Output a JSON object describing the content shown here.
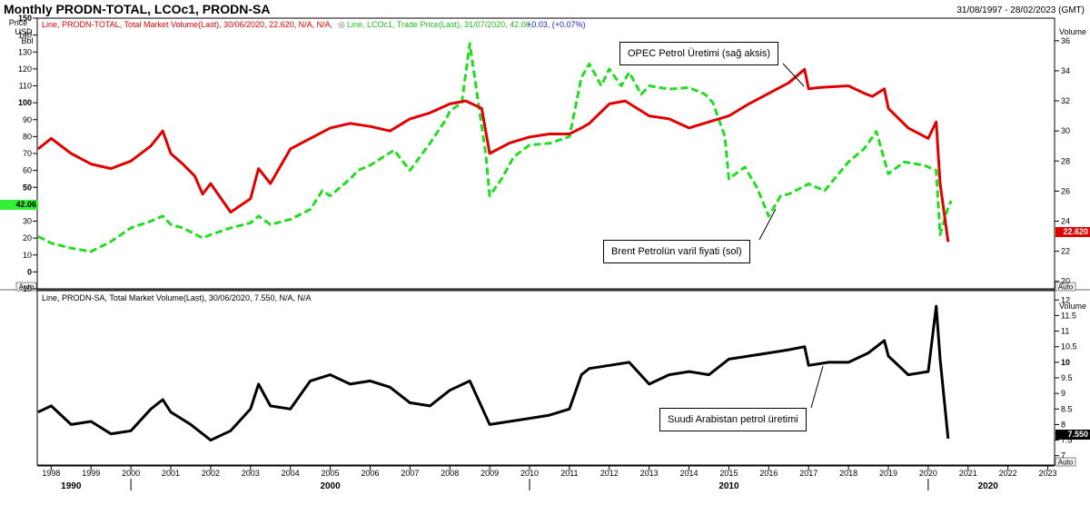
{
  "header": {
    "title": "Monthly PRODN-TOTAL, LCOc1, PRODN-SA",
    "date_range": "31/08/1997 - 28/02/2023 (GMT)"
  },
  "top_panel": {
    "legend_red": "Line, PRODN-TOTAL, Total Market Volume(Last), 30/06/2020, 22.620, N/A, N/A,",
    "legend_green": "Line, LCOc1, Trade Price(Last), 31/07/2020, 42.06,",
    "legend_change": "+0.03, (+0.07%)",
    "left_axis_title": [
      "Price",
      "USD",
      "Bbl"
    ],
    "right_axis_title": "Volume",
    "left_tag": "42.06",
    "right_tag": "22.620",
    "auto_left": "Auto",
    "auto_right": "Auto",
    "callout_opec": "OPEC Petrol Üretimi (sağ aksis)",
    "callout_brent": "Brent Petrolün varil fiyati (sol)"
  },
  "bottom_panel": {
    "legend": "Line, PRODN-SA, Total Market Volume(Last), 30/06/2020, 7.550, N/A, N/A",
    "right_axis_title": "Volume",
    "right_tag": "7.550",
    "auto_right": "Auto",
    "callout_saudi": "Suudi Arabistan petrol üretimi"
  },
  "x_axis": {
    "years": [
      "1998",
      "1999",
      "2000",
      "2001",
      "2002",
      "2003",
      "2004",
      "2005",
      "2006",
      "2007",
      "2008",
      "2009",
      "2010",
      "2011",
      "2012",
      "2013",
      "2014",
      "2015",
      "2016",
      "2017",
      "2018",
      "2019",
      "2020",
      "2021",
      "2022",
      "2023"
    ],
    "decades": [
      "1990",
      "2000",
      "2010",
      "2020"
    ]
  },
  "colors": {
    "opec": "#e00000",
    "brent": "#22dd22",
    "saudi": "#000000",
    "brent_tag": "#33ee33",
    "opec_tag": "#e00000"
  },
  "chart_data": [
    {
      "type": "line",
      "panel": "top",
      "y_left_ticks": [
        -10,
        0,
        10,
        20,
        30,
        40,
        50,
        60,
        70,
        80,
        90,
        100,
        110,
        120,
        130,
        140,
        150
      ],
      "y_left_range": [
        -10,
        150
      ],
      "y_right_ticks": [
        20,
        22,
        24,
        26,
        28,
        30,
        32,
        34,
        36
      ],
      "y_right_range": [
        19.5,
        37.5
      ],
      "x_range": [
        1997.65,
        2023.17
      ],
      "series": [
        {
          "name": "LCOc1",
          "axis": "left",
          "style": "dashed",
          "x": [
            1997.67,
            1998.0,
            1998.5,
            1999.0,
            1999.5,
            2000.0,
            2000.5,
            2000.8,
            2001.0,
            2001.3,
            2001.8,
            2002.0,
            2002.5,
            2003.0,
            2003.2,
            2003.5,
            2004.0,
            2004.5,
            2004.8,
            2005.0,
            2005.5,
            2005.7,
            2006.0,
            2006.6,
            2007.0,
            2007.5,
            2007.9,
            2008.0,
            2008.3,
            2008.5,
            2008.9,
            2009.0,
            2009.3,
            2009.6,
            2010.0,
            2010.5,
            2011.0,
            2011.3,
            2011.5,
            2011.8,
            2012.0,
            2012.3,
            2012.5,
            2012.8,
            2013.0,
            2013.5,
            2014.0,
            2014.4,
            2014.6,
            2014.9,
            2015.0,
            2015.4,
            2015.7,
            2016.0,
            2016.3,
            2016.5,
            2017.0,
            2017.4,
            2018.0,
            2018.4,
            2018.7,
            2019.0,
            2019.4,
            2019.9,
            2020.2,
            2020.3,
            2020.5,
            2020.58
          ],
          "y": [
            21,
            17,
            14,
            12,
            18,
            26,
            30,
            33,
            28,
            26,
            20,
            22,
            26,
            29,
            33,
            28,
            31,
            37,
            48,
            45,
            55,
            60,
            63,
            72,
            60,
            76,
            90,
            95,
            100,
            135,
            70,
            45,
            55,
            68,
            75,
            76,
            80,
            115,
            123,
            110,
            120,
            110,
            118,
            105,
            110,
            108,
            109,
            105,
            100,
            80,
            55,
            62,
            50,
            33,
            45,
            46,
            52,
            48,
            65,
            73,
            83,
            58,
            65,
            63,
            60,
            22,
            38,
            42.06
          ]
        },
        {
          "name": "PRODN-TOTAL",
          "axis": "right",
          "style": "solid",
          "x": [
            1997.67,
            1998.0,
            1998.5,
            1999.0,
            1999.5,
            2000.0,
            2000.5,
            2000.8,
            2001.0,
            2001.3,
            2001.6,
            2001.8,
            2002.0,
            2002.5,
            2003.0,
            2003.2,
            2003.5,
            2004.0,
            2004.5,
            2005.0,
            2005.5,
            2006.0,
            2006.5,
            2007.0,
            2007.5,
            2008.0,
            2008.4,
            2008.8,
            2009.0,
            2009.5,
            2010.0,
            2010.5,
            2011.0,
            2011.3,
            2011.5,
            2012.0,
            2012.4,
            2013.0,
            2013.5,
            2014.0,
            2014.5,
            2015.0,
            2015.5,
            2016.0,
            2016.5,
            2016.9,
            2017.0,
            2017.3,
            2018.0,
            2018.4,
            2018.6,
            2018.9,
            2019.0,
            2019.5,
            2020.0,
            2020.2,
            2020.3,
            2020.5
          ],
          "y": [
            28.8,
            29.5,
            28.5,
            27.8,
            27.5,
            28.0,
            29.0,
            30.0,
            28.5,
            27.8,
            27.0,
            25.8,
            26.5,
            24.6,
            25.5,
            27.5,
            26.5,
            28.8,
            29.5,
            30.2,
            30.5,
            30.3,
            30.0,
            30.8,
            31.2,
            31.8,
            32.0,
            31.5,
            28.5,
            29.2,
            29.6,
            29.8,
            29.8,
            30.2,
            30.5,
            31.8,
            32.0,
            31.0,
            30.8,
            30.2,
            30.6,
            31.0,
            31.8,
            32.5,
            33.2,
            34.1,
            32.8,
            32.9,
            33.0,
            32.5,
            32.3,
            32.8,
            31.5,
            30.2,
            29.5,
            30.6,
            26.5,
            22.62
          ]
        }
      ]
    },
    {
      "type": "line",
      "panel": "bottom",
      "y_right_ticks": [
        7,
        7.5,
        8,
        8.5,
        9,
        9.5,
        10,
        10.5,
        11,
        11.5,
        12
      ],
      "y_right_range": [
        6.7,
        12.3
      ],
      "x_range": [
        1997.65,
        2023.17
      ],
      "series": [
        {
          "name": "PRODN-SA",
          "axis": "right",
          "style": "solid",
          "x": [
            1997.67,
            1998.0,
            1998.5,
            1999.0,
            1999.5,
            2000.0,
            2000.5,
            2000.8,
            2001.0,
            2001.5,
            2002.0,
            2002.5,
            2003.0,
            2003.2,
            2003.5,
            2004.0,
            2004.5,
            2005.0,
            2005.5,
            2006.0,
            2006.5,
            2007.0,
            2007.5,
            2008.0,
            2008.5,
            2009.0,
            2009.5,
            2010.0,
            2010.5,
            2011.0,
            2011.3,
            2011.5,
            2012.0,
            2012.5,
            2013.0,
            2013.5,
            2014.0,
            2014.5,
            2015.0,
            2015.5,
            2016.0,
            2016.5,
            2016.9,
            2017.0,
            2017.5,
            2018.0,
            2018.5,
            2018.9,
            2019.0,
            2019.5,
            2020.0,
            2020.2,
            2020.3,
            2020.5
          ],
          "y": [
            8.4,
            8.6,
            8.0,
            8.1,
            7.7,
            7.8,
            8.5,
            8.8,
            8.4,
            8.0,
            7.5,
            7.8,
            8.5,
            9.3,
            8.6,
            8.5,
            9.4,
            9.6,
            9.3,
            9.4,
            9.2,
            8.7,
            8.6,
            9.1,
            9.4,
            8.0,
            8.1,
            8.2,
            8.3,
            8.5,
            9.6,
            9.8,
            9.9,
            10.0,
            9.3,
            9.6,
            9.7,
            9.6,
            10.1,
            10.2,
            10.3,
            10.4,
            10.5,
            9.9,
            10.0,
            10.0,
            10.3,
            10.7,
            10.2,
            9.6,
            9.7,
            11.8,
            10.1,
            7.55
          ]
        }
      ]
    }
  ]
}
